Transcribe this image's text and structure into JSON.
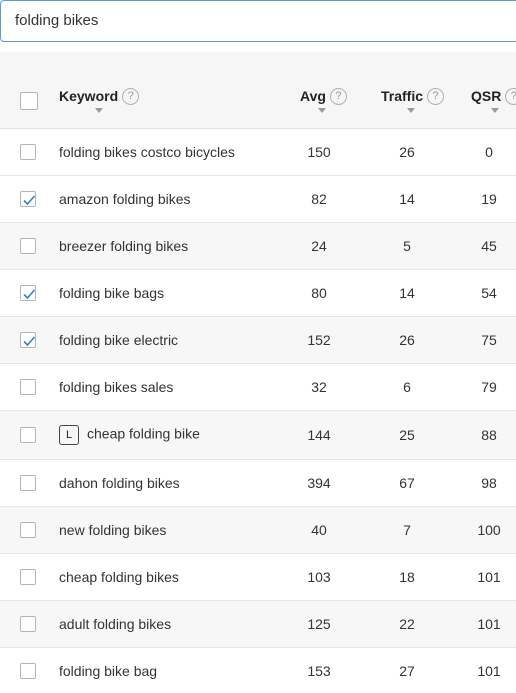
{
  "search": {
    "value": "folding bikes"
  },
  "table": {
    "columns": {
      "keyword": "Keyword",
      "avg": "Avg",
      "traffic": "Traffic",
      "qsr": "QSR"
    },
    "help_glyph": "?",
    "badge_label": "L",
    "rows": [
      {
        "keyword": "folding bikes costco bicycles",
        "avg": "150",
        "traffic": "26",
        "qsr": "0",
        "checked": false
      },
      {
        "keyword": "amazon folding bikes",
        "avg": "82",
        "traffic": "14",
        "qsr": "19",
        "checked": true
      },
      {
        "keyword": "breezer folding bikes",
        "avg": "24",
        "traffic": "5",
        "qsr": "45",
        "checked": false
      },
      {
        "keyword": "folding bike bags",
        "avg": "80",
        "traffic": "14",
        "qsr": "54",
        "checked": true
      },
      {
        "keyword": "folding bike electric",
        "avg": "152",
        "traffic": "26",
        "qsr": "75",
        "checked": true
      },
      {
        "keyword": "folding bikes sales",
        "avg": "32",
        "traffic": "6",
        "qsr": "79",
        "checked": false
      },
      {
        "keyword": "cheap folding bike",
        "avg": "144",
        "traffic": "25",
        "qsr": "88",
        "checked": false,
        "badge": true
      },
      {
        "keyword": "dahon folding bikes",
        "avg": "394",
        "traffic": "67",
        "qsr": "98",
        "checked": false
      },
      {
        "keyword": "new folding bikes",
        "avg": "40",
        "traffic": "7",
        "qsr": "100",
        "checked": false
      },
      {
        "keyword": "cheap folding bikes",
        "avg": "103",
        "traffic": "18",
        "qsr": "101",
        "checked": false
      },
      {
        "keyword": "adult folding bikes",
        "avg": "125",
        "traffic": "22",
        "qsr": "101",
        "checked": false
      },
      {
        "keyword": "folding bike bag",
        "avg": "153",
        "traffic": "27",
        "qsr": "101",
        "checked": false
      }
    ]
  },
  "colors": {
    "check": "#3b7dc4",
    "input_border": "#5b9bd5",
    "alt_row": "#f7f7f7"
  }
}
